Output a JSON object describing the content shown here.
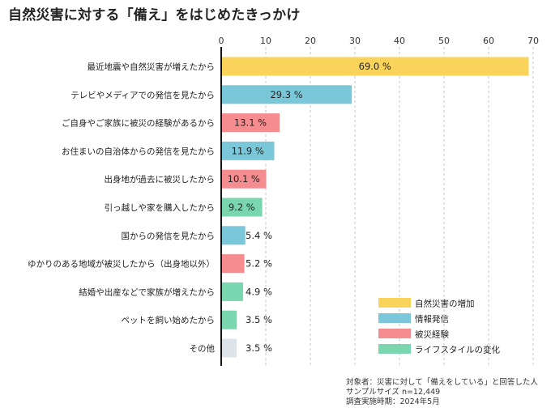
{
  "title": "自然災害に対する「備え」をはじめたきっかけ",
  "colors": {
    "disaster": "#fad45a",
    "info": "#79c7d8",
    "damage": "#f58c90",
    "life": "#79d6af",
    "other": "#dde4e9"
  },
  "chart_data": {
    "type": "bar",
    "orientation": "horizontal",
    "xlim": [
      0,
      70
    ],
    "xticks": [
      "0",
      "10",
      "20",
      "30",
      "40",
      "50",
      "60",
      "70"
    ],
    "tick_values": [
      0,
      10,
      20,
      30,
      40,
      50,
      60,
      70
    ],
    "grid": "vertical-dashed",
    "categories": [
      "最近地震や自然災害が増えたから",
      "テレビやメディアでの発信を見たから",
      "ご自身やご家族に被災の経験があるから",
      "お住まいの自治体からの発信を見たから",
      "出身地が過去に被災したから",
      "引っ越しや家を購入したから",
      "国からの発信を見たから",
      "ゆかりのある地域が被災したから（出身地以外）",
      "結婚や出産などで家族が増えたから",
      "ペットを飼い始めたから",
      "その他"
    ],
    "values": [
      69.0,
      29.3,
      13.1,
      11.9,
      10.1,
      9.2,
      5.4,
      5.2,
      4.9,
      3.5,
      3.5
    ],
    "value_labels": [
      "69.0 %",
      "29.3 %",
      "13.1 %",
      "11.9 %",
      "10.1 %",
      "9.2 %",
      "5.4 %",
      "5.2 %",
      "4.9 %",
      "3.5 %",
      "3.5 %"
    ],
    "groups": [
      "disaster",
      "info",
      "damage",
      "info",
      "damage",
      "life",
      "info",
      "damage",
      "life",
      "life",
      "other"
    ],
    "legend": [
      {
        "key": "disaster",
        "label": "自然災害の増加"
      },
      {
        "key": "info",
        "label": "情報発信"
      },
      {
        "key": "damage",
        "label": "被災経験"
      },
      {
        "key": "life",
        "label": "ライフスタイルの変化"
      }
    ],
    "legend_position": "bottom-right"
  },
  "footnote": {
    "line1": "対象者：災害に対して「備えをしている」と回答した人",
    "line2": "サンプルサイズ n=12,449",
    "line3": "調査実施時期：2024年5月"
  }
}
